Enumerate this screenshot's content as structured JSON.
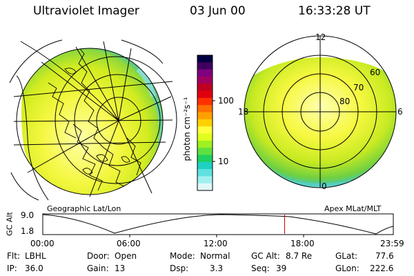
{
  "header": {
    "instrument": "Ultraviolet Imager",
    "date": "03 Jun 00",
    "time": "16:33:28 UT"
  },
  "panels": {
    "left_caption": "Geographic Lat/Lon",
    "right_caption": "Apex MLat/MLT",
    "mlt_labels": {
      "top": "12",
      "left": "18",
      "right": "6",
      "bottom": "0"
    },
    "mlat_labels": [
      "60",
      "70",
      "80"
    ]
  },
  "colorbar": {
    "unit_label": "photon cm⁻²s⁻¹",
    "ticks": [
      "100",
      "10"
    ],
    "colors": [
      "#000040",
      "#400060",
      "#800080",
      "#a00060",
      "#c00020",
      "#e00010",
      "#ff3000",
      "#ff7000",
      "#ffa000",
      "#ffd000",
      "#ffff40",
      "#e0ff20",
      "#a0f020",
      "#60e040",
      "#20d060",
      "#20d0c0",
      "#60e0e0",
      "#a0f0f0",
      "#e0f8f8"
    ]
  },
  "altitude_strip": {
    "axis_label": "GC Alt",
    "y_ticks": [
      "9.0",
      "1.8"
    ],
    "time_ticks": [
      "00:00",
      "06:00",
      "12:00",
      "18:00",
      "23:59"
    ],
    "current_time_fraction": 0.69,
    "marker_color": "#d00000"
  },
  "status": {
    "filter": {
      "label": "Flt:",
      "value": "LBHL"
    },
    "ip": {
      "label": "IP:",
      "value": "36.0"
    },
    "door": {
      "label": "Door:",
      "value": "Open"
    },
    "gain": {
      "label": "Gain:",
      "value": "13"
    },
    "mode": {
      "label": "Mode:",
      "value": "Normal"
    },
    "dsp": {
      "label": "Dsp:",
      "value": "3.3"
    },
    "gc_alt": {
      "label": "GC Alt:",
      "value": "8.7 Re"
    },
    "seq": {
      "label": "Seq:",
      "value": "39"
    },
    "glat": {
      "label": "GLat:",
      "value": "77.6"
    },
    "glon": {
      "label": "GLon:",
      "value": "222.6"
    }
  }
}
